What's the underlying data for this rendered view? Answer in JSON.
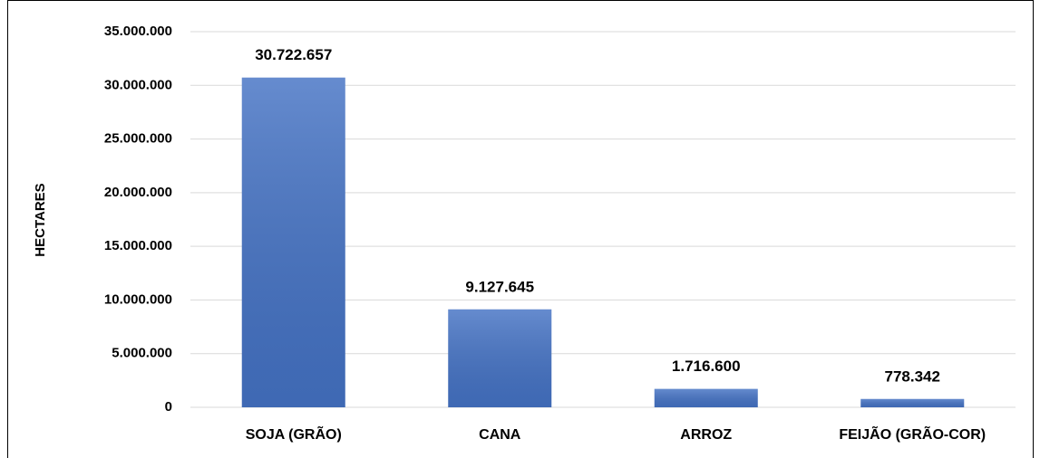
{
  "chart_data": {
    "type": "bar",
    "y_axis_label": "HECTARES",
    "categories": [
      "SOJA (GRÃO)",
      "CANA",
      "ARROZ",
      "FEIJÃO (GRÃO-COR)"
    ],
    "values": [
      30722657,
      9127645,
      1716600,
      778342
    ],
    "value_labels": [
      "30.722.657",
      "9.127.645",
      "1.716.600",
      "778.342"
    ],
    "color": "#4472c4",
    "ylim": [
      0,
      35000000
    ],
    "yticks": [
      0,
      {
        "value": 5000000,
        "label": "5.000.000"
      },
      {
        "value": 10000000,
        "label": "10.000.000"
      },
      {
        "value": 15000000,
        "label": "15.000.000"
      },
      {
        "value": 20000000,
        "label": "20.000.000"
      },
      {
        "value": 25000000,
        "label": "25.000.000"
      },
      {
        "value": 30000000,
        "label": "30.000.000"
      },
      {
        "value": 35000000,
        "label": "35.000.000"
      }
    ],
    "grid": true
  }
}
